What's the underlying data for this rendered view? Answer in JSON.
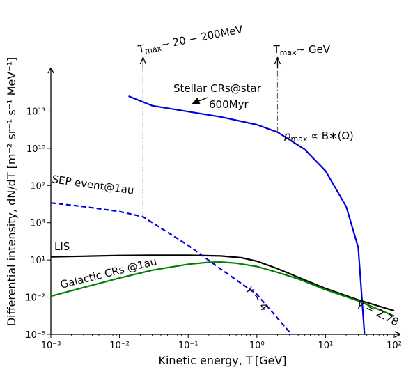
{
  "chart_data": {
    "type": "line",
    "title": "",
    "xlabel": "Kinetic energy, T [GeV]",
    "ylabel": "Differential intensity, dN/dT [m⁻² sr⁻¹ s⁻¹ MeV⁻¹]",
    "x_scale": "log",
    "y_scale": "log",
    "xlim": [
      0.001,
      100
    ],
    "ylim": [
      1e-05,
      1e+16
    ],
    "grid": false,
    "legend": "none",
    "x_ticks": [
      {
        "value": 0.001,
        "label": "10⁻³"
      },
      {
        "value": 0.01,
        "label": "10⁻²"
      },
      {
        "value": 0.1,
        "label": "10⁻¹"
      },
      {
        "value": 1,
        "label": "10⁰"
      },
      {
        "value": 10,
        "label": "10¹"
      },
      {
        "value": 100,
        "label": "10²"
      }
    ],
    "y_ticks": [
      {
        "value": 1e-05,
        "label": "10⁻⁵"
      },
      {
        "value": 0.01,
        "label": "10⁻²"
      },
      {
        "value": 10,
        "label": "10¹"
      },
      {
        "value": 10000,
        "label": "10⁴"
      },
      {
        "value": 10000000.0,
        "label": "10⁷"
      },
      {
        "value": 10000000000.0,
        "label": "10¹⁰"
      },
      {
        "value": 10000000000000.0,
        "label": "10¹³"
      }
    ],
    "series": [
      {
        "name": "Stellar CRs@star 600Myr",
        "color": "#0000dd",
        "style": "solid",
        "points": [
          [
            0.0135,
            160000000000000.0
          ],
          [
            0.03,
            27000000000000.0
          ],
          [
            0.1,
            9000000000000.0
          ],
          [
            0.3,
            3400000000000.0
          ],
          [
            1,
            800000000000.0
          ],
          [
            2,
            200000000000.0
          ],
          [
            5,
            8000000000.0
          ],
          [
            10,
            150000000.0
          ],
          [
            20,
            200000.0
          ],
          [
            30,
            100.0
          ],
          [
            37,
            1e-05
          ]
        ]
      },
      {
        "name": "LIS",
        "color": "#000000",
        "style": "solid",
        "points": [
          [
            0.001,
            18
          ],
          [
            0.003,
            20
          ],
          [
            0.01,
            23
          ],
          [
            0.03,
            24
          ],
          [
            0.1,
            24
          ],
          [
            0.3,
            21
          ],
          [
            0.6,
            15
          ],
          [
            1,
            8
          ],
          [
            2,
            2
          ],
          [
            4,
            0.4
          ],
          [
            10,
            0.05
          ],
          [
            30,
            0.006
          ],
          [
            100,
            0.0008
          ]
        ]
      },
      {
        "name": "Galactic CRs @1au",
        "color": "#008000",
        "style": "solid",
        "points": [
          [
            0.001,
            0.012
          ],
          [
            0.003,
            0.06
          ],
          [
            0.01,
            0.35
          ],
          [
            0.03,
            1.5
          ],
          [
            0.1,
            4.5
          ],
          [
            0.2,
            6.5
          ],
          [
            0.3,
            6.8
          ],
          [
            0.5,
            5.5
          ],
          [
            1,
            3
          ],
          [
            2,
            1
          ],
          [
            4,
            0.3
          ],
          [
            10,
            0.04
          ],
          [
            30,
            0.005
          ],
          [
            100,
            0.0003
          ]
        ]
      },
      {
        "name": "SEP event@1au",
        "color": "#0000dd",
        "style": "dashed",
        "points": [
          [
            0.001,
            400000.0
          ],
          [
            0.003,
            200000.0
          ],
          [
            0.01,
            80000.0
          ],
          [
            0.022,
            30000.0
          ],
          [
            0.1,
            150
          ],
          [
            0.3,
            1.8
          ],
          [
            1,
            0.017
          ],
          [
            3.2,
            1e-05
          ]
        ]
      }
    ],
    "vertical_markers": [
      {
        "x": 0.022,
        "from_y": 30000,
        "label": "T_max ~ 20 − 200MeV",
        "label_main": "T",
        "label_sub": "max",
        "label_rest": "∼ 20 − 200MeV"
      },
      {
        "x": 2,
        "from_y": 200000000000.0,
        "label": "T_max ~ GeV",
        "label_main": "T",
        "label_sub": "max",
        "label_rest": "∼ GeV"
      }
    ],
    "annotations": [
      {
        "text": "Stellar CRs@star",
        "series": "Stellar CRs@star 600Myr"
      },
      {
        "text": "600Myr",
        "series": "Stellar CRs@star 600Myr"
      },
      {
        "text": "p_max ∝ B∗(Ω)",
        "main": "p",
        "sub": "max",
        "rest": " ∝ B∗(Ω)"
      },
      {
        "text": "SEP event@1au",
        "series": "SEP event@1au"
      },
      {
        "text": "LIS",
        "series": "LIS"
      },
      {
        "text": "Galactic CRs @1au",
        "series": "Galactic CRs @1au"
      },
      {
        "text": "γ ∼ 4",
        "series": "SEP event@1au"
      },
      {
        "text": "γ = 2.78",
        "series": "Galactic CRs @1au"
      }
    ]
  }
}
